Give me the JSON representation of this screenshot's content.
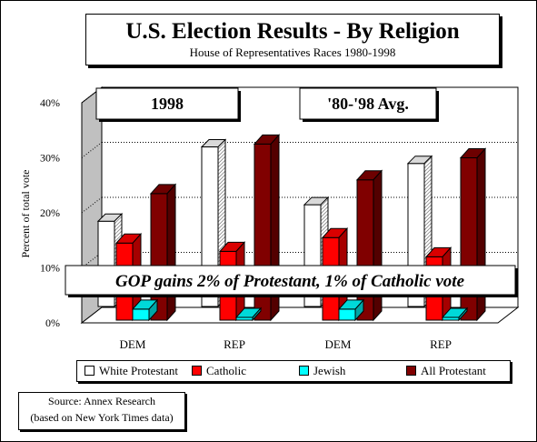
{
  "header": {
    "title": "U.S. Election Results - By Religion",
    "subtitle": "House of Representatives Races 1980-1998"
  },
  "source": {
    "line1": "Source: Annex Research",
    "line2": "(based on New York Times data)"
  },
  "colors": {
    "white_protestant": "#ffffff",
    "catholic": "#ff0000",
    "jewish": "#00ffff",
    "all_protestant": "#800000"
  },
  "chart_data": {
    "type": "bar",
    "categories": [
      "DEM",
      "REP",
      "DEM",
      "REP"
    ],
    "groups": [
      "1998",
      "'80-'98 Avg."
    ],
    "series": [
      {
        "name": "White Protestant",
        "values": [
          15.5,
          29,
          18.5,
          26
        ]
      },
      {
        "name": "Catholic",
        "values": [
          14,
          12.5,
          15,
          11.5
        ]
      },
      {
        "name": "Jewish",
        "values": [
          2,
          0.5,
          2,
          0.5
        ]
      },
      {
        "name": "All Protestant",
        "values": [
          23,
          32,
          25.5,
          29.5
        ]
      }
    ],
    "ylabel": "Percent of total vote",
    "yticks": [
      "0%",
      "10%",
      "20%",
      "30%",
      "40%"
    ],
    "ylim": [
      0,
      40
    ],
    "annotation": "GOP gains 2% of Protestant, 1% of Catholic vote",
    "legend_position": "bottom",
    "grid": true
  }
}
